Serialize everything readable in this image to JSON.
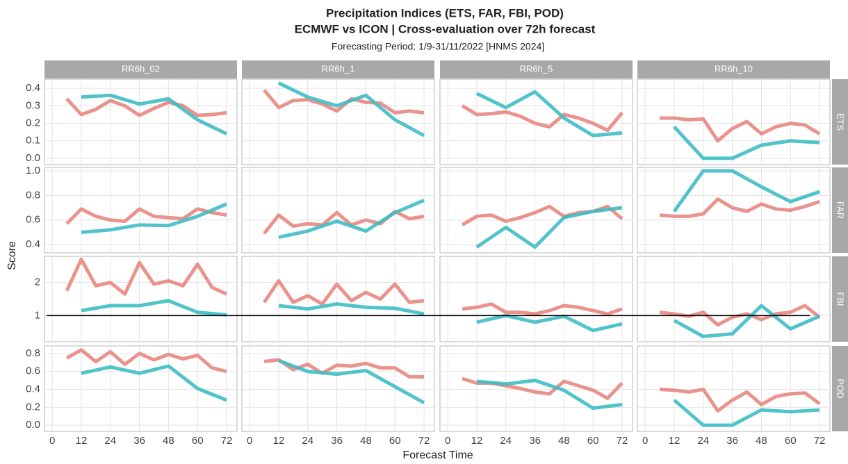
{
  "chart_data": {
    "type": "line",
    "title": [
      "Precipitation Indices (ETS, FAR, FBI, POD)",
      "ECMWF vs ICON | Cross-evaluation over 72h forecast"
    ],
    "subtitle": "Forecasting Period: 1/9-31/11/2022 [HNMS 2024]",
    "xlabel": "Forecast Time",
    "ylabel": "Score",
    "xlim": [
      -3.2,
      76.3
    ],
    "xticks": [
      0,
      12,
      24,
      36,
      48,
      60,
      72
    ],
    "grid": true,
    "columns": [
      "RR6h_02",
      "RR6h_1",
      "RR6h_5",
      "RR6h_10"
    ],
    "rows": [
      {
        "label": "ETS",
        "ylim": [
          -0.036,
          0.452
        ],
        "yticks": [
          {
            "value": 0,
            "label": "0.0"
          },
          0.1,
          0.2,
          0.3,
          0.4
        ]
      },
      {
        "label": "FAR",
        "ylim": [
          0.333,
          1.028
        ],
        "yticks": [
          0.4,
          0.6,
          0.8,
          {
            "value": 1,
            "label": "1.0"
          }
        ]
      },
      {
        "label": "FBI",
        "ylim": [
          0.21,
          2.79
        ],
        "yticks": [
          1,
          2
        ],
        "hline": 1
      },
      {
        "label": "POD",
        "ylim": [
          -0.069,
          0.885
        ],
        "yticks": [
          {
            "value": 0,
            "label": "0.0"
          },
          0.2,
          0.4,
          0.6,
          0.8
        ]
      }
    ],
    "series": [
      {
        "color": "#e8877f",
        "x": [
          6,
          12,
          18,
          24,
          30,
          36,
          42,
          48,
          54,
          60,
          66,
          72
        ]
      },
      {
        "color": "#3ebdc4",
        "x": [
          12,
          24,
          36,
          48,
          60,
          72
        ]
      }
    ],
    "panels": [
      [
        [
          [
            0.34,
            0.25,
            0.28,
            0.33,
            0.3,
            0.245,
            0.285,
            0.32,
            0.3,
            0.245,
            0.25,
            0.26
          ],
          [
            0.35,
            0.36,
            0.31,
            0.34,
            0.22,
            0.14
          ]
        ],
        [
          [
            0.39,
            0.29,
            0.33,
            0.335,
            0.31,
            0.27,
            0.34,
            0.32,
            0.315,
            0.26,
            0.27,
            0.26
          ],
          [
            0.43,
            0.35,
            0.3,
            0.36,
            0.22,
            0.13
          ]
        ],
        [
          [
            0.3,
            0.25,
            0.255,
            0.265,
            0.24,
            0.2,
            0.18,
            0.25,
            0.23,
            0.2,
            0.16,
            0.26
          ],
          [
            0.37,
            0.29,
            0.38,
            0.23,
            0.13,
            0.145
          ]
        ],
        [
          [
            0.23,
            0.23,
            0.22,
            0.225,
            0.1,
            0.17,
            0.21,
            0.14,
            0.18,
            0.2,
            0.19,
            0.14
          ],
          [
            0.18,
            0.0,
            0.0,
            0.075,
            0.1,
            0.09
          ]
        ]
      ],
      [
        [
          [
            0.57,
            0.69,
            0.63,
            0.6,
            0.59,
            0.69,
            0.63,
            0.62,
            0.61,
            0.69,
            0.66,
            0.64
          ],
          [
            0.5,
            0.52,
            0.56,
            0.555,
            0.63,
            0.73
          ]
        ],
        [
          [
            0.49,
            0.64,
            0.55,
            0.57,
            0.56,
            0.66,
            0.56,
            0.6,
            0.57,
            0.67,
            0.61,
            0.63
          ],
          [
            0.46,
            0.51,
            0.59,
            0.51,
            0.66,
            0.76
          ]
        ],
        [
          [
            0.56,
            0.63,
            0.64,
            0.59,
            0.62,
            0.66,
            0.71,
            0.63,
            0.66,
            0.67,
            0.71,
            0.61
          ],
          [
            0.38,
            0.54,
            0.38,
            0.62,
            0.67,
            0.7
          ]
        ],
        [
          [
            0.64,
            0.63,
            0.63,
            0.65,
            0.77,
            0.7,
            0.67,
            0.73,
            0.69,
            0.68,
            0.71,
            0.75
          ],
          [
            0.67,
            1.0,
            1.0,
            0.87,
            0.75,
            0.83
          ]
        ]
      ],
      [
        [
          [
            1.75,
            2.7,
            1.9,
            2.0,
            1.65,
            2.6,
            1.95,
            2.05,
            1.9,
            2.55,
            1.85,
            1.65
          ],
          [
            1.15,
            1.3,
            1.3,
            1.45,
            1.1,
            1.02
          ]
        ],
        [
          [
            1.4,
            2.05,
            1.4,
            1.6,
            1.35,
            1.95,
            1.45,
            1.7,
            1.5,
            1.95,
            1.4,
            1.45
          ],
          [
            1.3,
            1.2,
            1.35,
            1.25,
            1.22,
            1.05
          ]
        ],
        [
          [
            1.2,
            1.25,
            1.35,
            1.1,
            1.1,
            1.05,
            1.15,
            1.3,
            1.25,
            1.15,
            1.05,
            1.2
          ],
          [
            0.8,
            1.0,
            0.8,
            0.98,
            0.55,
            0.75
          ]
        ],
        [
          [
            1.1,
            1.05,
            0.98,
            1.1,
            0.72,
            0.95,
            1.05,
            0.88,
            1.05,
            1.1,
            1.3,
            0.95
          ],
          [
            0.85,
            0.37,
            0.45,
            1.3,
            0.6,
            0.98
          ]
        ]
      ],
      [
        [
          [
            0.75,
            0.84,
            0.71,
            0.82,
            0.68,
            0.8,
            0.73,
            0.79,
            0.74,
            0.78,
            0.64,
            0.6
          ],
          [
            0.58,
            0.65,
            0.58,
            0.66,
            0.41,
            0.28
          ]
        ],
        [
          [
            0.71,
            0.73,
            0.62,
            0.68,
            0.58,
            0.67,
            0.66,
            0.69,
            0.64,
            0.64,
            0.54,
            0.54
          ],
          [
            0.72,
            0.6,
            0.57,
            0.61,
            0.43,
            0.25
          ]
        ],
        [
          [
            0.52,
            0.47,
            0.47,
            0.44,
            0.41,
            0.37,
            0.35,
            0.49,
            0.44,
            0.39,
            0.3,
            0.47
          ],
          [
            0.49,
            0.46,
            0.5,
            0.39,
            0.19,
            0.23
          ]
        ],
        [
          [
            0.4,
            0.39,
            0.37,
            0.4,
            0.16,
            0.28,
            0.37,
            0.23,
            0.32,
            0.35,
            0.36,
            0.24
          ],
          [
            0.28,
            0.0,
            0.0,
            0.17,
            0.15,
            0.17
          ]
        ]
      ]
    ]
  }
}
